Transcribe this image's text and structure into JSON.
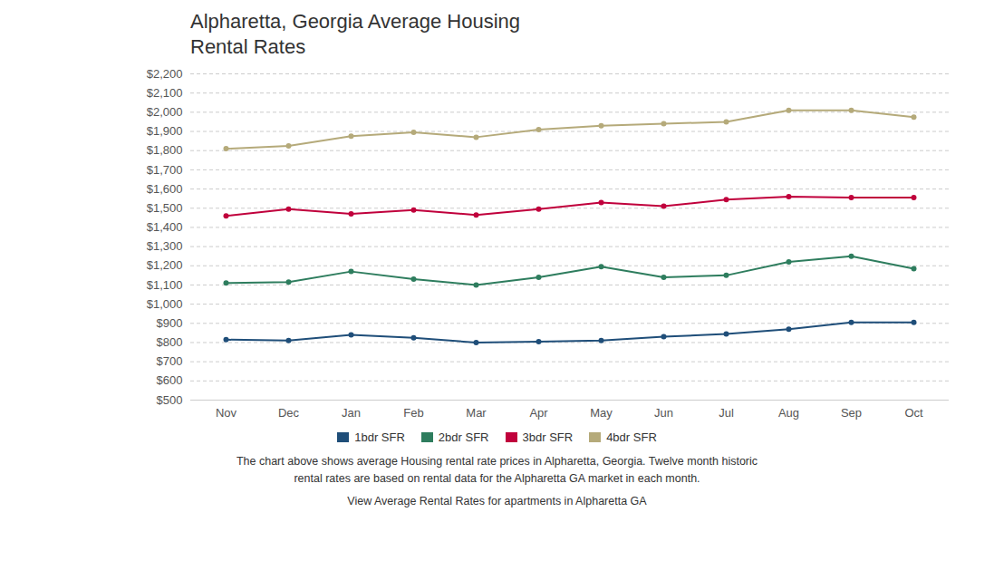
{
  "chart_data": {
    "type": "line",
    "title": "Alpharetta, Georgia Average Housing\nRental Rates",
    "subtitle": "The chart above shows average Housing rental rate prices in Alpharetta, Georgia. Twelve month historic\nrental rates are based on rental data for the Alpharetta GA market in each month.",
    "caption": "View Average Rental Rates for apartments in Alpharetta GA",
    "categories": [
      "Nov",
      "Dec",
      "Jan",
      "Feb",
      "Mar",
      "Apr",
      "May",
      "Jun",
      "Jul",
      "Aug",
      "Sep",
      "Oct"
    ],
    "series": [
      {
        "name": "1bdr SFR",
        "color": "#1f4e79",
        "values": [
          815,
          810,
          840,
          825,
          800,
          805,
          810,
          830,
          845,
          870,
          905,
          905
        ]
      },
      {
        "name": "2bdr SFR",
        "color": "#2e7d5e",
        "values": [
          1110,
          1115,
          1170,
          1130,
          1100,
          1140,
          1195,
          1140,
          1150,
          1220,
          1250,
          1185
        ]
      },
      {
        "name": "3bdr SFR",
        "color": "#c0003c",
        "values": [
          1460,
          1495,
          1470,
          1490,
          1465,
          1495,
          1530,
          1510,
          1545,
          1560,
          1555,
          1555
        ]
      },
      {
        "name": "4bdr SFR",
        "color": "#b5aa7a",
        "values": [
          1810,
          1825,
          1875,
          1895,
          1870,
          1910,
          1930,
          1940,
          1950,
          2010,
          2010,
          1975
        ]
      }
    ],
    "ylim": [
      500,
      2200
    ],
    "yticks": [
      {
        "value": 500,
        "label": "$500"
      },
      {
        "value": 600,
        "label": "$600"
      },
      {
        "value": 700,
        "label": "$700"
      },
      {
        "value": 800,
        "label": "$800"
      },
      {
        "value": 900,
        "label": "$900"
      },
      {
        "value": 1000,
        "label": "$1,000"
      },
      {
        "value": 1100,
        "label": "$1,100"
      },
      {
        "value": 1200,
        "label": "$1,200"
      },
      {
        "value": 1300,
        "label": "$1,300"
      },
      {
        "value": 1400,
        "label": "$1,400"
      },
      {
        "value": 1500,
        "label": "$1,500"
      },
      {
        "value": 1600,
        "label": "$1,600"
      },
      {
        "value": 1700,
        "label": "$1,700"
      },
      {
        "value": 1800,
        "label": "$1,800"
      },
      {
        "value": 1900,
        "label": "$1,900"
      },
      {
        "value": 2000,
        "label": "$2,000"
      },
      {
        "value": 2100,
        "label": "$2,100"
      },
      {
        "value": 2200,
        "label": "$2,200"
      }
    ],
    "grid": true,
    "legend": "bottom",
    "marker": "circle"
  }
}
